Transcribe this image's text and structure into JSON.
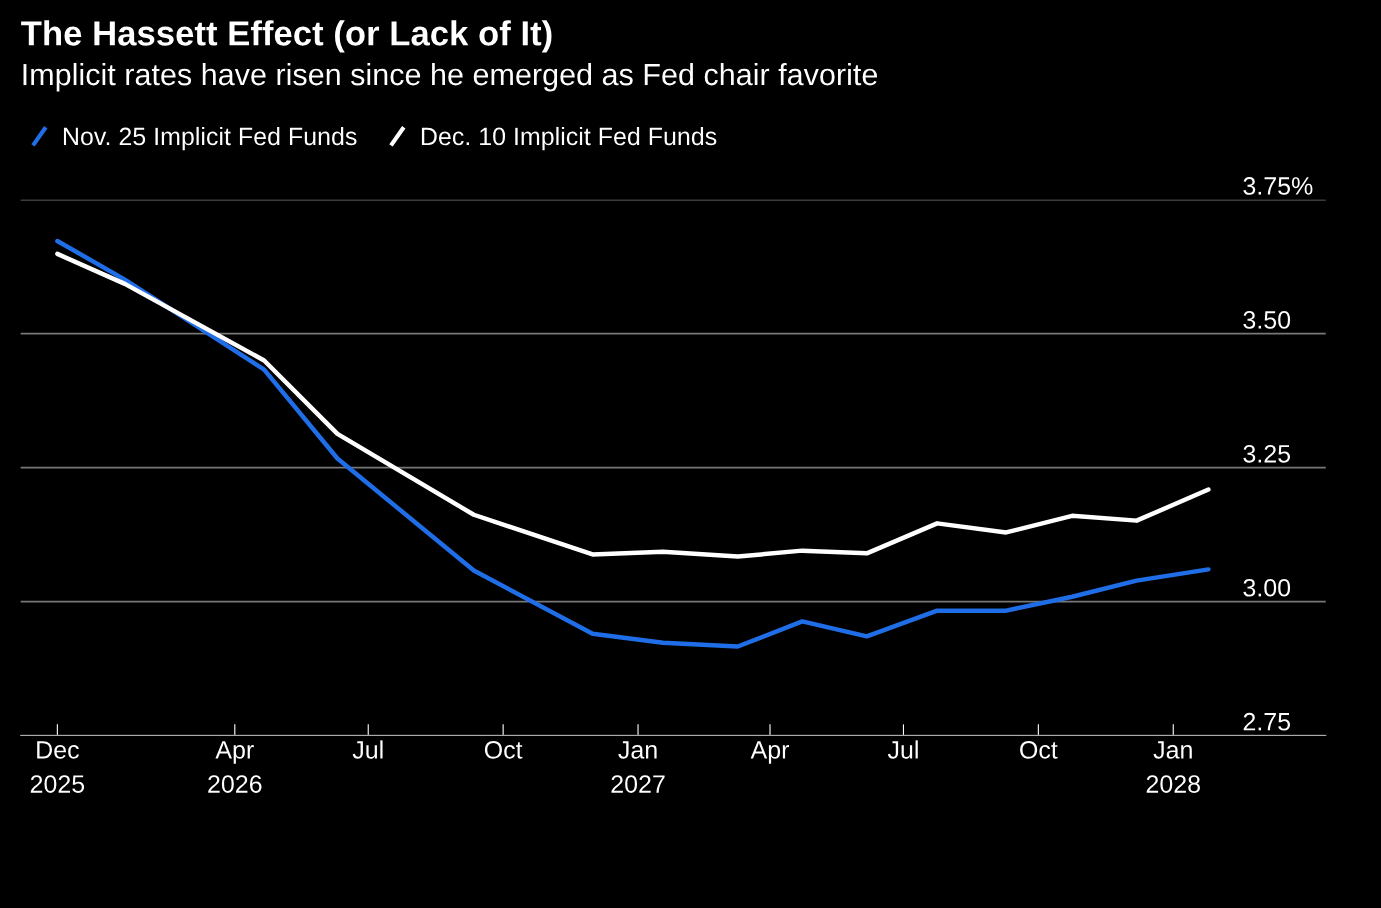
{
  "chart_data": {
    "type": "line",
    "title": "The Hassett Effect (or Lack of It)",
    "subtitle": "Implicit rates have risen since he emerged as Fed chair favorite",
    "x": [
      "2025-12-01",
      "2026-01-16",
      "2026-04-21",
      "2026-06-10",
      "2026-09-11",
      "2026-12-01",
      "2027-01-18",
      "2027-03-10",
      "2027-04-23",
      "2027-06-06",
      "2027-07-24",
      "2027-09-09",
      "2027-10-24",
      "2027-12-07",
      "2028-01-25"
    ],
    "series": [
      {
        "name": "Nov. 25 Implicit Fed Funds",
        "color": "#1f6ee8",
        "values": [
          3.673,
          3.601,
          3.433,
          3.267,
          3.058,
          2.94,
          2.923,
          2.916,
          2.963,
          2.935,
          2.983,
          2.983,
          3.009,
          3.039,
          3.06
        ]
      },
      {
        "name": "Dec. 10 Implicit Fed Funds",
        "color": "#ffffff",
        "values": [
          3.649,
          3.593,
          3.45,
          3.313,
          3.162,
          3.088,
          3.093,
          3.084,
          3.095,
          3.09,
          3.146,
          3.129,
          3.16,
          3.151,
          3.209
        ]
      }
    ],
    "xlim": [
      "2025-11-06",
      "2028-04-14"
    ],
    "xticks": [
      {
        "value": "2025-12-01",
        "label": "Dec\n2025"
      },
      {
        "value": "2026-04-01",
        "label": "Apr\n2026"
      },
      {
        "value": "2026-07-01",
        "label": "Jul"
      },
      {
        "value": "2026-10-01",
        "label": "Oct"
      },
      {
        "value": "2027-01-01",
        "label": "Jan\n2027"
      },
      {
        "value": "2027-04-01",
        "label": "Apr"
      },
      {
        "value": "2027-07-01",
        "label": "Jul"
      },
      {
        "value": "2027-10-01",
        "label": "Oct"
      },
      {
        "value": "2028-01-01",
        "label": "Jan\n2028"
      }
    ],
    "ylim": [
      2.75,
      3.75
    ],
    "yticks": [
      {
        "value": 2.75,
        "label": "2.75"
      },
      {
        "value": 3.0,
        "label": "3.00"
      },
      {
        "value": 3.25,
        "label": "3.25"
      },
      {
        "value": 3.5,
        "label": "3.50"
      },
      {
        "value": 3.75,
        "label": "3.75%"
      }
    ],
    "grid": "y",
    "legend": "top left",
    "marker": "none",
    "line_style": "solid"
  }
}
